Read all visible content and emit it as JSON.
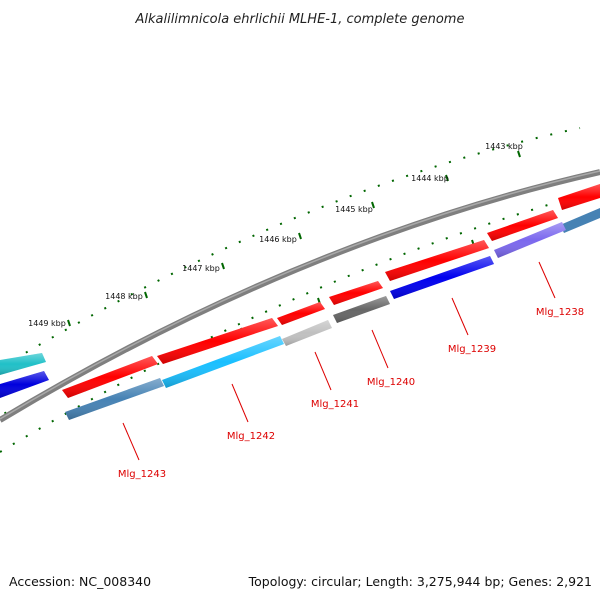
{
  "title": "Alkalilimnicola ehrlichii MLHE-1, complete genome",
  "footer": {
    "accession": "Accession: NC_008340",
    "summary": "Topology: circular; Length: 3,275,944 bp; Genes: 2,921"
  },
  "scale_ticks": [
    {
      "label": "1443 kbp"
    },
    {
      "label": "1444 kbp"
    },
    {
      "label": "1445 kbp"
    },
    {
      "label": "1446 kbp"
    },
    {
      "label": "1447 kbp"
    },
    {
      "label": "1448 kbp"
    },
    {
      "label": "1449 kbp"
    }
  ],
  "genes": [
    {
      "label": "Mlg_1238",
      "color": "#7b68ee"
    },
    {
      "label": "Mlg_1239",
      "color": "#0000ee"
    },
    {
      "label": "Mlg_1240",
      "color": "#666666"
    },
    {
      "label": "Mlg_1241",
      "color": "#c0c0c0"
    },
    {
      "label": "Mlg_1242",
      "color": "#19bfff"
    },
    {
      "label": "Mlg_1243",
      "color": "#4682b4"
    }
  ],
  "colors": {
    "forward_strand": "#ff0000",
    "backbone": "#7f7f7f",
    "scale": "#006600",
    "label": "#dd0000",
    "edge_cyan": "#20c0c8",
    "edge_blue": "#0000dd"
  }
}
